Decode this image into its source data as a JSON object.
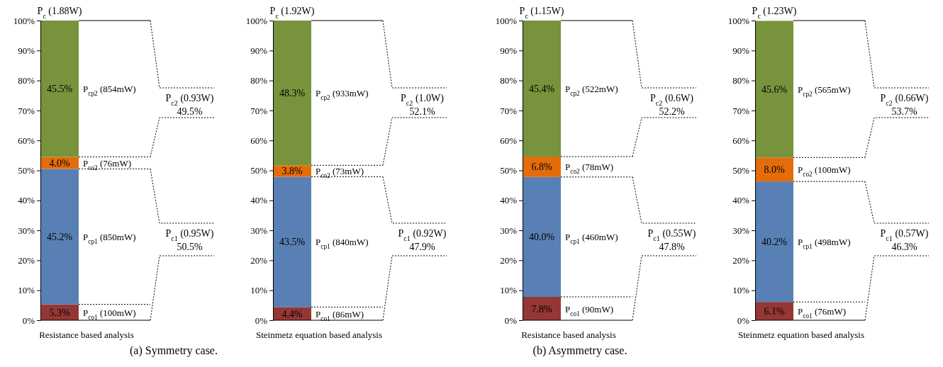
{
  "chart_data": [
    {
      "type": "bar",
      "stacked": true,
      "title": "P$_{c}$ (1.88W)",
      "categories": [
        "Resistance based analysis"
      ],
      "series": [
        {
          "color": "#953735",
          "values": [
            5.3
          ],
          "value_labels": [
            "5.3%"
          ]
        },
        {
          "color": "#5880b5",
          "values": [
            45.2
          ],
          "value_labels": [
            "45.2%"
          ]
        },
        {
          "color": "#e46c0a",
          "values": [
            4.0
          ],
          "value_labels": [
            "4.0%"
          ]
        },
        {
          "color": "#77933c",
          "values": [
            45.5
          ],
          "value_labels": [
            "45.5%"
          ]
        }
      ],
      "ylim": [
        0,
        100
      ],
      "yticks": [
        {
          "value": 0,
          "label": "0%"
        },
        {
          "value": 10,
          "label": "10%"
        },
        {
          "value": 20,
          "label": "20%"
        },
        {
          "value": 30,
          "label": "30%"
        },
        {
          "value": 40,
          "label": "40%"
        },
        {
          "value": 50,
          "label": "50%"
        },
        {
          "value": 60,
          "label": "60%"
        },
        {
          "value": 70,
          "label": "70%"
        },
        {
          "value": 80,
          "label": "80%"
        },
        {
          "value": 90,
          "label": "90%"
        },
        {
          "value": 100,
          "label": "100%"
        }
      ],
      "annotations": [
        "P$_{co1}$ (100mW)",
        "P$_{cp1}$ (850mW)",
        "P$_{co2}$ (76mW)",
        "P$_{cp2}$ (854mW)",
        "P$_{c1}$ (0.95W)",
        "50.5%",
        "P$_{c2}$ (0.93W)",
        "49.5%",
        "(a) Symmetry case."
      ]
    },
    {
      "type": "bar",
      "stacked": true,
      "title": "P$_{c}$ (1.92W)",
      "categories": [
        "Steinmetz equation based analysis"
      ],
      "series": [
        {
          "color": "#953735",
          "values": [
            4.4
          ],
          "value_labels": [
            "4.4%"
          ]
        },
        {
          "color": "#5880b5",
          "values": [
            43.5
          ],
          "value_labels": [
            "43.5%"
          ]
        },
        {
          "color": "#e46c0a",
          "values": [
            3.8
          ],
          "value_labels": [
            "3.8%"
          ]
        },
        {
          "color": "#77933c",
          "values": [
            48.3
          ],
          "value_labels": [
            "48.3%"
          ]
        }
      ],
      "ylim": [
        0,
        100
      ],
      "yticks": [
        {
          "value": 0,
          "label": "0%"
        },
        {
          "value": 10,
          "label": "10%"
        },
        {
          "value": 20,
          "label": "20%"
        },
        {
          "value": 30,
          "label": "30%"
        },
        {
          "value": 40,
          "label": "40%"
        },
        {
          "value": 50,
          "label": "50%"
        },
        {
          "value": 60,
          "label": "60%"
        },
        {
          "value": 70,
          "label": "70%"
        },
        {
          "value": 80,
          "label": "80%"
        },
        {
          "value": 90,
          "label": "90%"
        },
        {
          "value": 100,
          "label": "100%"
        }
      ],
      "annotations": [
        "P$_{co1}$ (86mW)",
        "P$_{cp1}$ (840mW)",
        "P$_{co2}$ (73mW)",
        "P$_{cp2}$ (933mW)",
        "P$_{c1}$ (0.92W)",
        "47.9%",
        "P$_{c2}$ (1.0W)",
        "52.1%"
      ]
    },
    {
      "type": "bar",
      "stacked": true,
      "title": "P$_{c}$ (1.15W)",
      "categories": [
        "Resistance based analysis"
      ],
      "series": [
        {
          "color": "#953735",
          "values": [
            7.8
          ],
          "value_labels": [
            "7.8%"
          ]
        },
        {
          "color": "#5880b5",
          "values": [
            40.0
          ],
          "value_labels": [
            "40.0%"
          ]
        },
        {
          "color": "#e46c0a",
          "values": [
            6.8
          ],
          "value_labels": [
            "6.8%"
          ]
        },
        {
          "color": "#77933c",
          "values": [
            45.4
          ],
          "value_labels": [
            "45.4%"
          ]
        }
      ],
      "ylim": [
        0,
        100
      ],
      "yticks": [
        {
          "value": 0,
          "label": "0%"
        },
        {
          "value": 10,
          "label": "10%"
        },
        {
          "value": 20,
          "label": "20%"
        },
        {
          "value": 30,
          "label": "30%"
        },
        {
          "value": 40,
          "label": "40%"
        },
        {
          "value": 50,
          "label": "50%"
        },
        {
          "value": 60,
          "label": "60%"
        },
        {
          "value": 70,
          "label": "70%"
        },
        {
          "value": 80,
          "label": "80%"
        },
        {
          "value": 90,
          "label": "90%"
        },
        {
          "value": 100,
          "label": "100%"
        }
      ],
      "annotations": [
        "P$_{co1}$ (90mW)",
        "P$_{cp1}$ (460mW)",
        "P$_{co2}$ (78mW)",
        "P$_{cp2}$ (522mW)",
        "P$_{c1}$ (0.55W)",
        "47.8%",
        "P$_{c2}$ (0.6W)",
        "52.2%",
        "(b) Asymmetry case."
      ]
    },
    {
      "type": "bar",
      "stacked": true,
      "title": "P$_{c}$ (1.23W)",
      "categories": [
        "Steinmetz equation based analysis"
      ],
      "series": [
        {
          "color": "#953735",
          "values": [
            6.1
          ],
          "value_labels": [
            "6.1%"
          ]
        },
        {
          "color": "#5880b5",
          "values": [
            40.2
          ],
          "value_labels": [
            "40.2%"
          ]
        },
        {
          "color": "#e46c0a",
          "values": [
            8.0
          ],
          "value_labels": [
            "8.0%"
          ]
        },
        {
          "color": "#77933c",
          "values": [
            45.6
          ],
          "value_labels": [
            "45.6%"
          ]
        }
      ],
      "ylim": [
        0,
        100
      ],
      "yticks": [
        {
          "value": 0,
          "label": "0%"
        },
        {
          "value": 10,
          "label": "10%"
        },
        {
          "value": 20,
          "label": "20%"
        },
        {
          "value": 30,
          "label": "30%"
        },
        {
          "value": 40,
          "label": "40%"
        },
        {
          "value": 50,
          "label": "50%"
        },
        {
          "value": 60,
          "label": "60%"
        },
        {
          "value": 70,
          "label": "70%"
        },
        {
          "value": 80,
          "label": "80%"
        },
        {
          "value": 90,
          "label": "90%"
        },
        {
          "value": 100,
          "label": "100%"
        }
      ],
      "annotations": [
        "P$_{co1}$ (76mW)",
        "P$_{cp1}$ (498mW)",
        "P$_{co2}$ (100mW)",
        "P$_{cp2}$ (565mW)",
        "P$_{c1}$ (0.57W)",
        "46.3%",
        "P$_{c2}$ (0.66W)",
        "53.7%"
      ]
    }
  ]
}
